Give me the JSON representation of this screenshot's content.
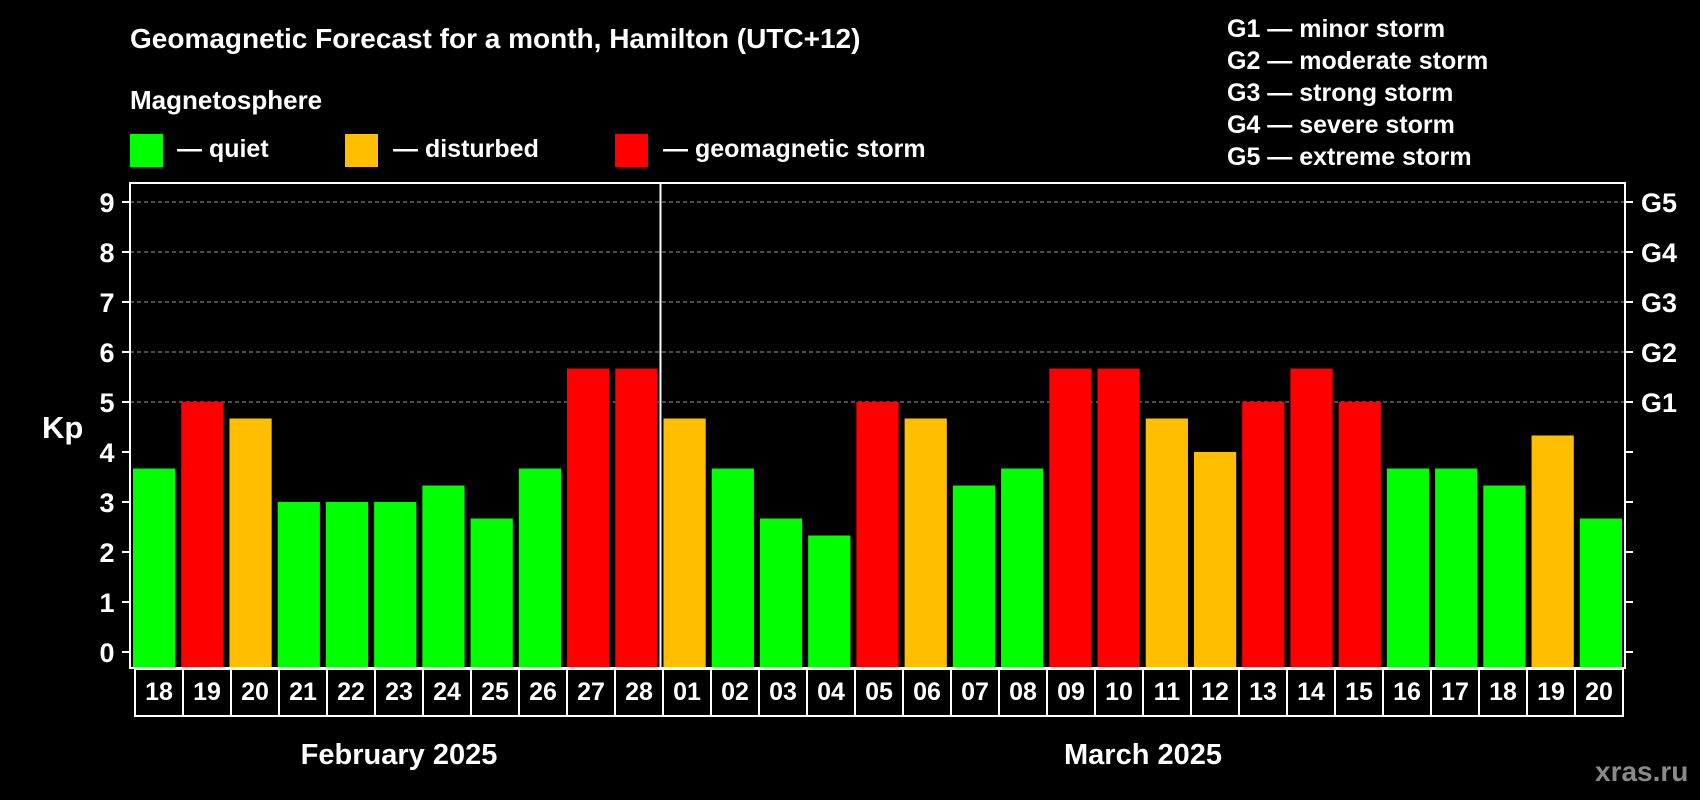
{
  "colors": {
    "background": "#000000",
    "quiet": "#00ff00",
    "disturbed": "#ffbf00",
    "storm": "#ff0000",
    "axis": "#ffffff",
    "grid": "#9a9a9a",
    "watermark": "#8a8a8a"
  },
  "chart_data": {
    "type": "bar",
    "title": "Geomagnetic Forecast for a month, Hamilton (UTC+12)",
    "subtitle": "Magnetosphere",
    "ylabel": "Kp",
    "ylim": [
      0,
      9
    ],
    "yticks": [
      "0",
      "1",
      "2",
      "3",
      "4",
      "5",
      "6",
      "7",
      "8",
      "9"
    ],
    "grid": "dashed horizontal at 5-9",
    "legend": [
      {
        "key": "quiet",
        "label": "— quiet"
      },
      {
        "key": "disturbed",
        "label": "— disturbed"
      },
      {
        "key": "storm",
        "label": "— geomagnetic storm"
      }
    ],
    "storm_scale": [
      "G1 — minor storm",
      "G2 — moderate storm",
      "G3 — strong storm",
      "G4 — severe storm",
      "G5 — extreme storm"
    ],
    "right_ticks": [
      {
        "kp": 5,
        "label": "G1"
      },
      {
        "kp": 6,
        "label": "G2"
      },
      {
        "kp": 7,
        "label": "G3"
      },
      {
        "kp": 8,
        "label": "G4"
      },
      {
        "kp": 9,
        "label": "G5"
      }
    ],
    "months": [
      {
        "label": "February 2025",
        "count": 11
      },
      {
        "label": "March 2025",
        "count": 20
      }
    ],
    "categories": [
      "18",
      "19",
      "20",
      "21",
      "22",
      "23",
      "24",
      "25",
      "26",
      "27",
      "28",
      "01",
      "02",
      "03",
      "04",
      "05",
      "06",
      "07",
      "08",
      "09",
      "10",
      "11",
      "12",
      "13",
      "14",
      "15",
      "16",
      "17",
      "18",
      "19",
      "20"
    ],
    "values": [
      3.67,
      5,
      4.67,
      3,
      3,
      3,
      3.33,
      2.67,
      3.67,
      5.67,
      5.67,
      4.67,
      3.67,
      2.67,
      2.33,
      5,
      4.67,
      3.33,
      3.67,
      5.67,
      5.67,
      4.67,
      4,
      5,
      5.67,
      5,
      3.67,
      3.67,
      3.33,
      4.33,
      2.67
    ],
    "levels": [
      "quiet",
      "storm",
      "disturbed",
      "quiet",
      "quiet",
      "quiet",
      "quiet",
      "quiet",
      "quiet",
      "storm",
      "storm",
      "disturbed",
      "quiet",
      "quiet",
      "quiet",
      "storm",
      "disturbed",
      "quiet",
      "quiet",
      "storm",
      "storm",
      "disturbed",
      "disturbed",
      "storm",
      "storm",
      "storm",
      "quiet",
      "quiet",
      "quiet",
      "disturbed",
      "quiet"
    ]
  },
  "watermark": "xras.ru"
}
